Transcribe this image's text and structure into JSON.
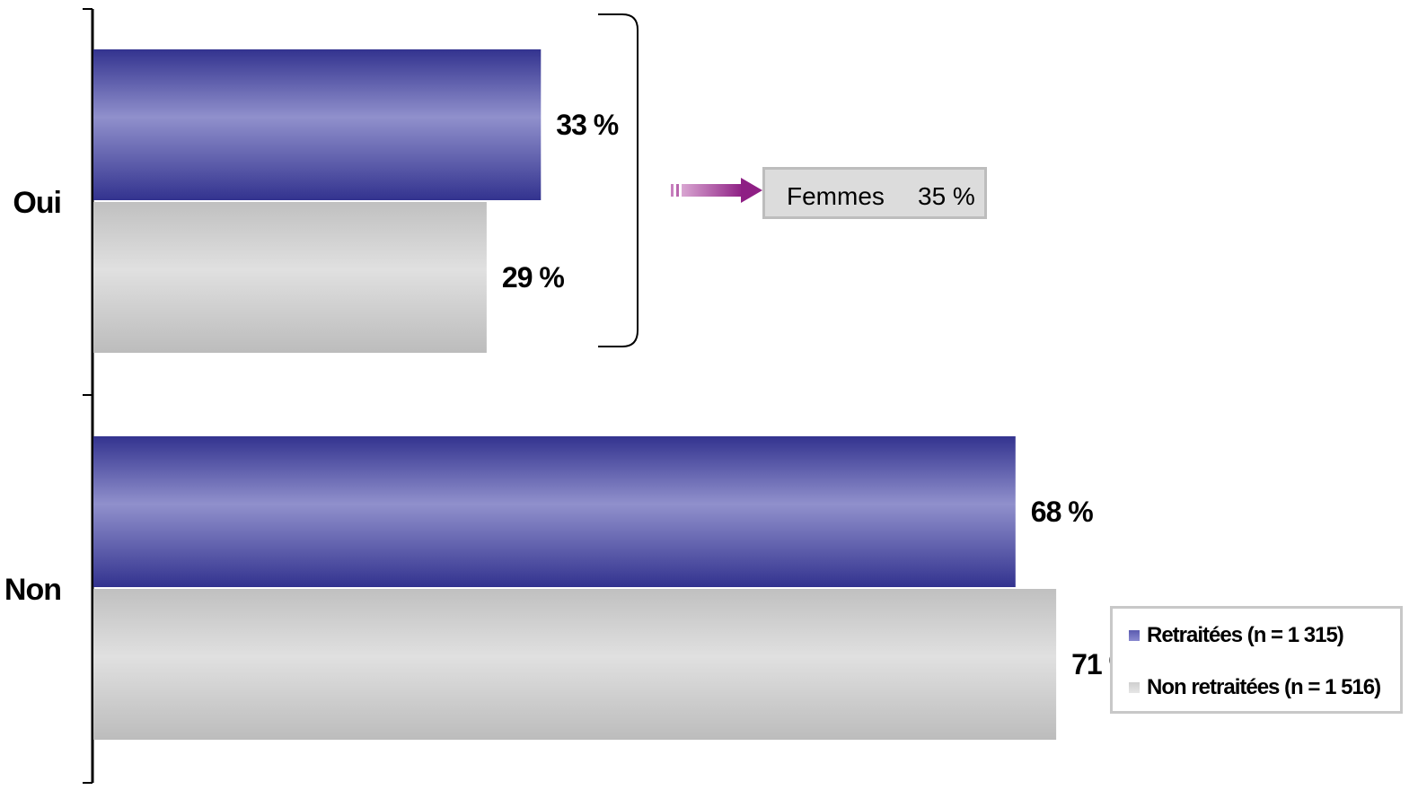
{
  "chart_data": {
    "type": "bar",
    "orientation": "horizontal",
    "categories": [
      "Oui",
      "Non"
    ],
    "series": [
      {
        "name": "Retraitées (n = 1 315)",
        "values": [
          33,
          68
        ],
        "color": "#3a3a9a",
        "value_labels": [
          "33 %",
          "68 %"
        ]
      },
      {
        "name": "Non retraitées (n = 1 516)",
        "values": [
          29,
          71
        ],
        "color": "#c8c8c8",
        "value_labels": [
          "29 %",
          "71 %"
        ]
      }
    ],
    "xlim": [
      0,
      100
    ],
    "grid": false,
    "legend_position": "bottom-right",
    "annotation": {
      "label": "Femmes",
      "value": "35 %",
      "arrow_color": "#a0308f"
    }
  }
}
